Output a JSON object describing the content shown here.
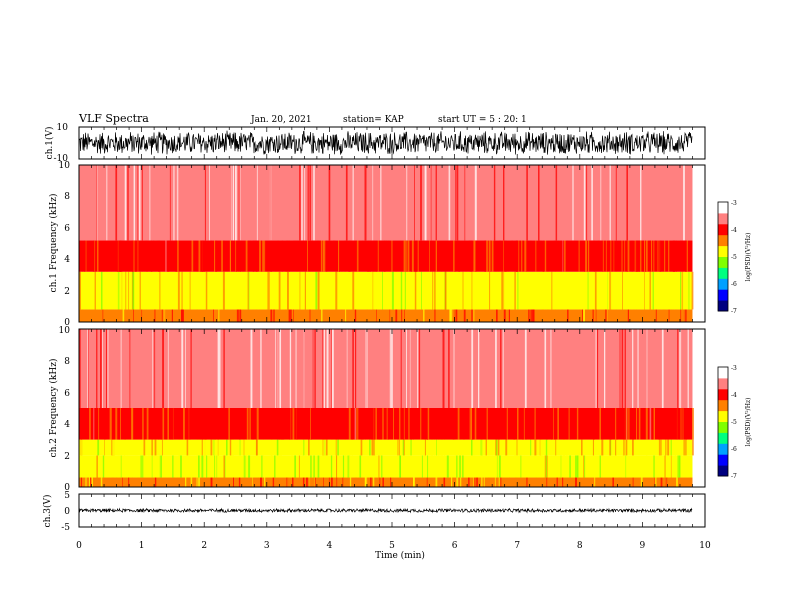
{
  "header": {
    "title": "VLF Spectra",
    "date": "Jan. 20, 2021",
    "station": "station= KAP",
    "start": "start  UT  =  5 : 20: 1"
  },
  "chart_data": [
    {
      "type": "line",
      "panel": "ch1-waveform",
      "ylabel": "ch.1(V)",
      "ylim": [
        -10,
        10
      ],
      "y_tick_labels": [
        "10",
        "-10"
      ],
      "x_range_min": [
        0,
        9.8
      ],
      "color": "#000000",
      "description_values": {
        "typical_amplitude_V": 8
      }
    },
    {
      "type": "heatmap",
      "panel": "ch1-spectrogram",
      "ylabel": "ch.1  Frequency (kHz)",
      "ylim": [
        0,
        10
      ],
      "y_tick_labels": [
        "0",
        "2",
        "4",
        "6",
        "8",
        "10"
      ],
      "x_range_min": [
        0,
        9.8
      ],
      "bands": [
        {
          "f_kHz": [
            0,
            0.8
          ],
          "level": -4.2
        },
        {
          "f_kHz": [
            0.8,
            3.2
          ],
          "level": -4.7
        },
        {
          "f_kHz": [
            3.2,
            5.2
          ],
          "level": -4.1
        },
        {
          "f_kHz": [
            5.2,
            10
          ],
          "level": -3.4
        }
      ],
      "colorbar": {
        "label": "log(PSD)(V²/Hz)",
        "min": -7,
        "max": -3,
        "tick_labels": [
          "-3",
          "-4",
          "-5",
          "-6",
          "-7"
        ]
      }
    },
    {
      "type": "heatmap",
      "panel": "ch2-spectrogram",
      "ylabel": "ch.2  Frequency (kHz)",
      "ylim": [
        0,
        10
      ],
      "y_tick_labels": [
        "0",
        "2",
        "4",
        "6",
        "8",
        "10"
      ],
      "x_range_min": [
        0,
        9.8
      ],
      "bands": [
        {
          "f_kHz": [
            0,
            0.6
          ],
          "level": -4.3
        },
        {
          "f_kHz": [
            0.6,
            2.0
          ],
          "level": -4.95
        },
        {
          "f_kHz": [
            2.0,
            3.0
          ],
          "level": -4.7
        },
        {
          "f_kHz": [
            3.0,
            5.0
          ],
          "level": -4.1
        },
        {
          "f_kHz": [
            5.0,
            10
          ],
          "level": -3.4
        }
      ],
      "colorbar": {
        "label": "log(PSD)(V²/Hz)",
        "min": -7,
        "max": -3,
        "tick_labels": [
          "-3",
          "-4",
          "-5",
          "-6",
          "-7"
        ]
      }
    },
    {
      "type": "line",
      "panel": "ch3-waveform",
      "ylabel": "ch.3(V)",
      "ylim": [
        -5,
        5
      ],
      "y_tick_labels": [
        "5",
        "0",
        "-5"
      ],
      "x_range_min": [
        0,
        9.8
      ],
      "color": "#000000",
      "description_values": {
        "typical_amplitude_V": 0.6
      }
    }
  ],
  "x_axis": {
    "label": "Time (min)",
    "range": [
      0,
      10
    ],
    "tick_labels": [
      "0",
      "1",
      "2",
      "3",
      "4",
      "5",
      "6",
      "7",
      "8",
      "9",
      "10"
    ]
  },
  "colors": {
    "colormap": [
      "#000080",
      "#0000ff",
      "#00a0ff",
      "#00ff80",
      "#80ff00",
      "#ffff00",
      "#ff8000",
      "#ff0000",
      "#ff8080",
      "#ffffff"
    ]
  }
}
